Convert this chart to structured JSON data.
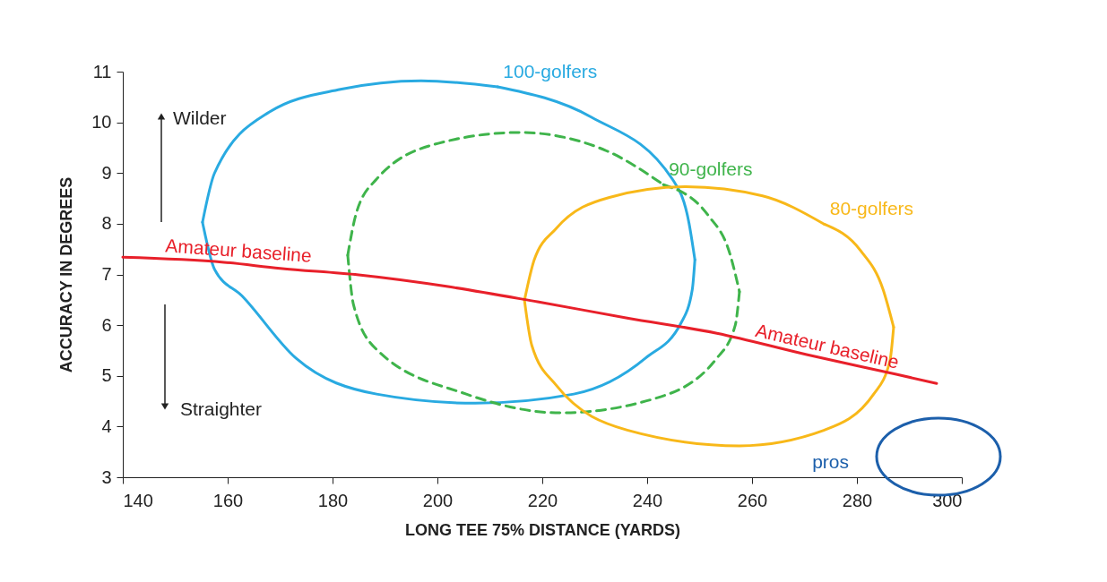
{
  "chart_data": {
    "type": "line",
    "xlabel": "LONG TEE 75% DISTANCE (YARDS)",
    "ylabel": "ACCURACY IN DEGREES",
    "xlim": [
      140,
      300
    ],
    "xticks": [
      140,
      160,
      180,
      200,
      220,
      240,
      260,
      280,
      300
    ],
    "ylim": [
      3,
      11
    ],
    "yticks": [
      3,
      4,
      5,
      6,
      7,
      8,
      9,
      10,
      11
    ],
    "series": [
      {
        "name": "100-golfers",
        "color": "#29aae1",
        "x": [
          211.5,
          229.4,
          244.8,
          248,
          249.1
        ],
        "values": [
          10.7,
          10.1,
          8.88,
          8.0,
          7.29
        ]
      },
      {
        "color": "#29aae1",
        "x": [
          155.2,
          157.5,
          162.7,
          173,
          188.4,
          207.2,
          226,
          239.7,
          246.5,
          248.6,
          249.1
        ],
        "values": [
          8.03,
          7.1,
          6.58,
          5.35,
          4.64,
          4.46,
          4.64,
          5.35,
          6.05,
          6.7,
          7.29
        ]
      },
      {
        "color": "#29aae1",
        "x": [
          155.2,
          157.5,
          167.9,
          181.5,
          196.9,
          211.5
        ],
        "values": [
          8.03,
          9.0,
          10.2,
          10.65,
          10.82,
          10.7
        ]
      },
      {
        "name": "90-golfers",
        "color": "#3fb44b",
        "line_style": "dashed",
        "x": [
          243.1,
          251.6,
          255.8,
          257.6
        ],
        "values": [
          8.77,
          8.17,
          7.4,
          6.66
        ]
      },
      {
        "color": "#3fb44b",
        "line_style": "dashed",
        "x": [
          182.9,
          184,
          188.4,
          205.5,
          223.4,
          241.4,
          253.3,
          256.8,
          257.6
        ],
        "values": [
          7.38,
          6.4,
          5.52,
          4.64,
          4.27,
          4.55,
          5.35,
          6.0,
          6.66
        ]
      },
      {
        "color": "#3fb44b",
        "line_style": "dashed",
        "x": [
          182.9,
          184.5,
          188.4,
          200.3,
          215.7,
          232,
          243.1
        ],
        "values": [
          7.38,
          8.2,
          8.88,
          9.59,
          9.8,
          9.45,
          8.77
        ]
      },
      {
        "name": "80-golfers",
        "color": "#f8b819",
        "x": [
          273.8,
          280.7,
          285,
          287
        ],
        "values": [
          7.99,
          7.47,
          6.7,
          5.96
        ]
      },
      {
        "color": "#f8b819",
        "x": [
          216.6,
          218,
          222.6,
          236.2,
          257.6,
          273.8,
          283.2,
          286.3,
          287
        ],
        "values": [
          6.49,
          5.6,
          4.82,
          3.93,
          3.62,
          3.93,
          4.64,
          5.3,
          5.96
        ]
      },
      {
        "color": "#f8b819",
        "x": [
          216.6,
          218.5,
          222.6,
          232.8,
          247.4,
          262,
          273.8
        ],
        "values": [
          6.49,
          7.3,
          7.9,
          8.52,
          8.73,
          8.55,
          7.99
        ]
      },
      {
        "color": "#e8202a",
        "x": [
          140,
          159.3,
          170,
          185,
          202,
          219.1,
          236.2,
          253.3,
          270.4,
          287.5,
          295.2
        ],
        "values": [
          7.34,
          7.24,
          7.12,
          6.99,
          6.76,
          6.46,
          6.14,
          5.84,
          5.42,
          5.03,
          4.85
        ]
      }
    ],
    "annotations": [
      "Wilder",
      "Straighter",
      "pros",
      {
        "text": "Amateur baseline",
        "x": 161.9,
        "y": 7.22
      },
      {
        "text": "Amateur baseline",
        "x": 273.8,
        "y": 5.34
      }
    ]
  }
}
